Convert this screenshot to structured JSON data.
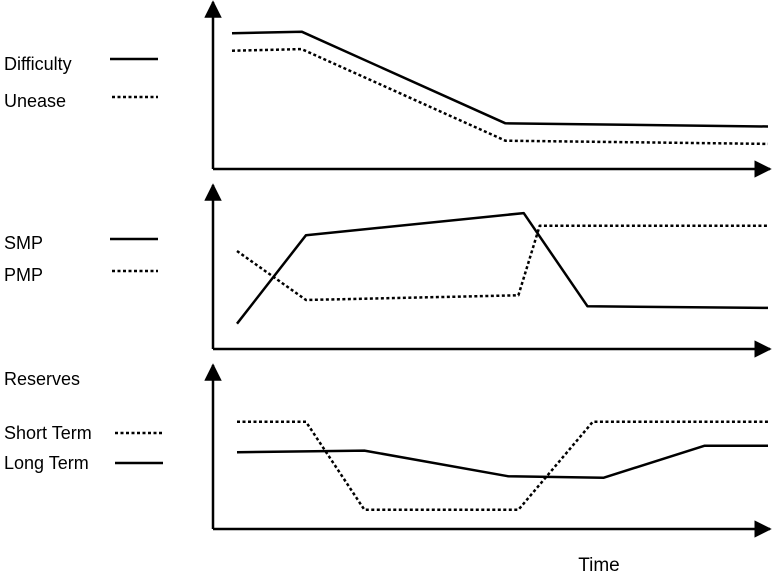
{
  "chart_data": [
    {
      "type": "line",
      "legend_title": "",
      "series": [
        {
          "name": "Difficulty",
          "style": "solid",
          "points": [
            [
              0.0,
              0.84
            ],
            [
              0.13,
              0.85
            ],
            [
              0.51,
              0.27
            ],
            [
              1.0,
              0.25
            ]
          ]
        },
        {
          "name": "Unease",
          "style": "dotted",
          "points": [
            [
              0.0,
              0.73
            ],
            [
              0.13,
              0.74
            ],
            [
              0.51,
              0.16
            ],
            [
              1.0,
              0.14
            ]
          ]
        }
      ],
      "ylim": [
        0,
        1
      ],
      "xlim": [
        0,
        1
      ],
      "grid": false
    },
    {
      "type": "line",
      "legend_title": "",
      "series": [
        {
          "name": "SMP",
          "style": "solid",
          "points": [
            [
              0.0,
              0.16
            ],
            [
              0.13,
              0.72
            ],
            [
              0.54,
              0.86
            ],
            [
              0.66,
              0.27
            ],
            [
              1.0,
              0.26
            ]
          ]
        },
        {
          "name": "PMP",
          "style": "dotted",
          "points": [
            [
              0.0,
              0.62
            ],
            [
              0.13,
              0.31
            ],
            [
              0.53,
              0.34
            ],
            [
              0.57,
              0.78
            ],
            [
              1.0,
              0.78
            ]
          ]
        }
      ],
      "ylim": [
        0,
        1
      ],
      "xlim": [
        0,
        1
      ],
      "grid": false
    },
    {
      "type": "line",
      "legend_title": "Reserves",
      "series": [
        {
          "name": "Short Term",
          "style": "dotted",
          "points": [
            [
              0.0,
              0.67
            ],
            [
              0.13,
              0.67
            ],
            [
              0.24,
              0.12
            ],
            [
              0.53,
              0.12
            ],
            [
              0.67,
              0.67
            ],
            [
              1.0,
              0.67
            ]
          ]
        },
        {
          "name": "Long Term",
          "style": "solid",
          "points": [
            [
              0.0,
              0.48
            ],
            [
              0.24,
              0.49
            ],
            [
              0.51,
              0.33
            ],
            [
              0.69,
              0.32
            ],
            [
              0.88,
              0.52
            ],
            [
              1.0,
              0.52
            ]
          ]
        }
      ],
      "ylim": [
        0,
        1
      ],
      "xlim": [
        0,
        1
      ],
      "grid": false
    }
  ],
  "xlabel": "Time"
}
